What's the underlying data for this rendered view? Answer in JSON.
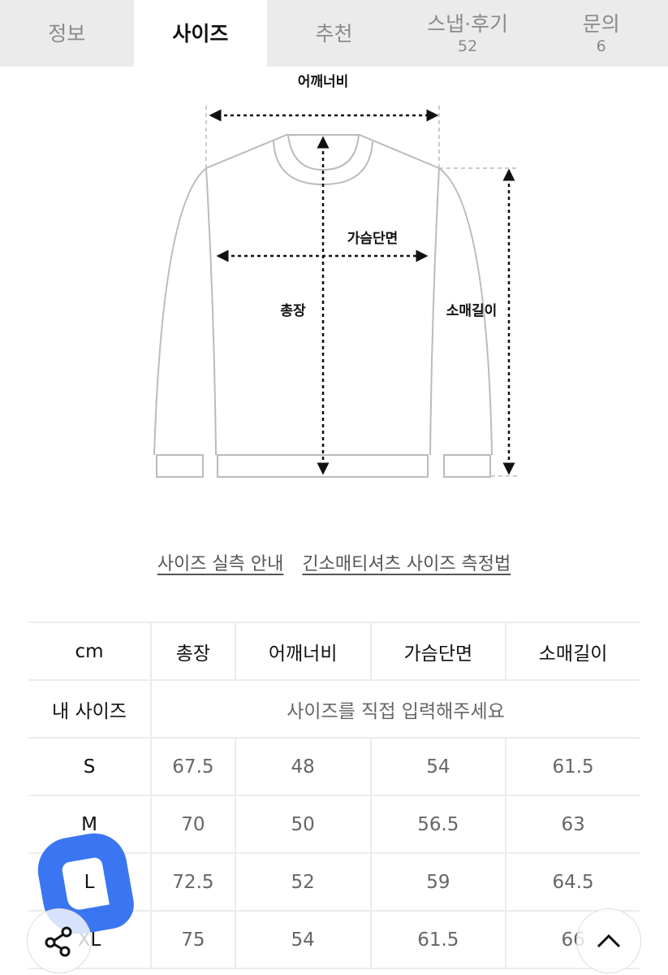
{
  "tabs": [
    {
      "label": "정보"
    },
    {
      "label": "사이즈",
      "active": true
    },
    {
      "label": "추천"
    },
    {
      "label": "스냅·후기",
      "count": "52"
    },
    {
      "label": "문의",
      "count": "6"
    }
  ],
  "diagram": {
    "shoulder": "어깨너비",
    "chest": "가슴단면",
    "length": "총장",
    "sleeve": "소매길이"
  },
  "links": [
    "사이즈 실측 안내",
    "긴소매티셔츠 사이즈 측정법"
  ],
  "table": {
    "headers": [
      "cm",
      "총장",
      "어깨너비",
      "가슴단면",
      "소매길이"
    ],
    "my_size_label": "내 사이즈",
    "my_size_placeholder": "사이즈를 직접 입력해주세요",
    "rows": [
      [
        "S",
        "67.5",
        "48",
        "54",
        "61.5"
      ],
      [
        "M",
        "70",
        "50",
        "56.5",
        "63"
      ],
      [
        "L",
        "72.5",
        "52",
        "59",
        "64.5"
      ],
      [
        "XL",
        "75",
        "54",
        "61.5",
        "66"
      ]
    ]
  },
  "annotation_color": "#2f6ff0"
}
